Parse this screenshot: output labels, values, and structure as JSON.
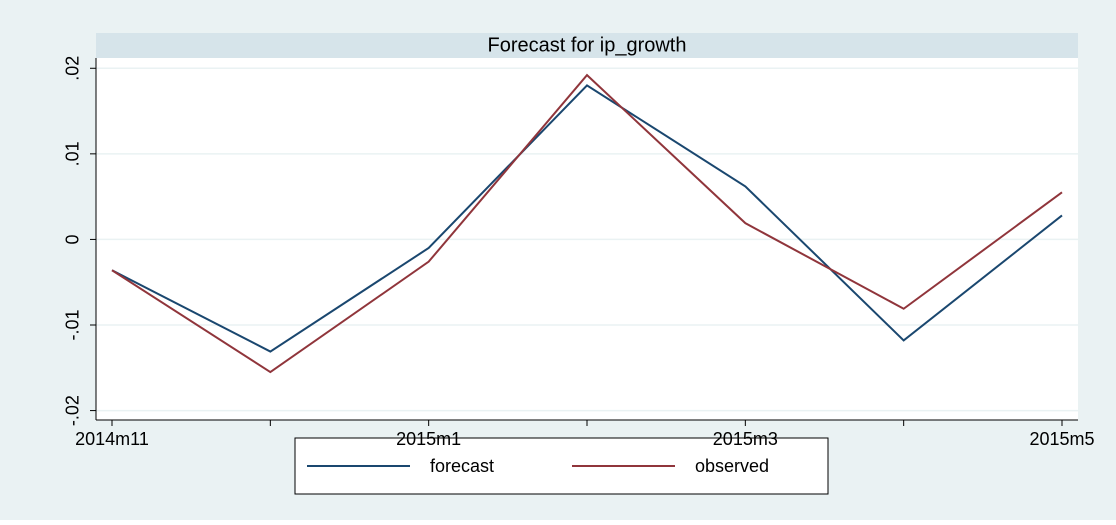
{
  "chart_data": {
    "type": "line",
    "title": "Forecast for ip_growth",
    "categories": [
      "2014m11",
      null,
      "2015m1",
      null,
      "2015m3",
      null,
      "2015m5"
    ],
    "series": [
      {
        "name": "forecast",
        "color": "#1a476f",
        "values": [
          -0.0036,
          -0.0131,
          -0.001,
          0.018,
          0.0062,
          -0.0118,
          0.0028
        ]
      },
      {
        "name": "observed",
        "color": "#90353b",
        "values": [
          -0.0036,
          -0.0155,
          -0.0026,
          0.0192,
          0.0019,
          -0.0081,
          0.0055
        ]
      }
    ],
    "ylim": [
      -0.0211,
      0.0212
    ],
    "yticks": [
      {
        "value": -0.02,
        "label": "-.02"
      },
      {
        "value": -0.01,
        "label": "-.01"
      },
      0,
      {
        "value": 0.01,
        "label": ".01"
      },
      {
        "value": 0.02,
        "label": ".02"
      }
    ],
    "grid": true
  }
}
